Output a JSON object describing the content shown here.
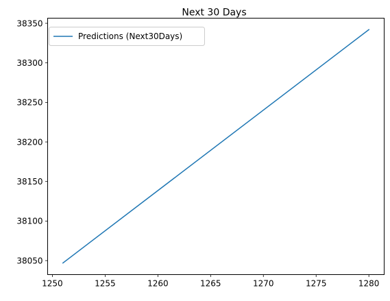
{
  "chart_data": {
    "type": "line",
    "title": "Next 30 Days",
    "xlabel": "",
    "ylabel": "",
    "xlim": [
      1249.55,
      1281.45
    ],
    "ylim": [
      38032.3,
      38356.5
    ],
    "xticks": [
      1250,
      1255,
      1260,
      1265,
      1270,
      1275,
      1280
    ],
    "yticks": [
      38050,
      38100,
      38150,
      38200,
      38250,
      38300,
      38350
    ],
    "grid": false,
    "legend": {
      "position": "top-left"
    },
    "series": [
      {
        "name": "Predictions (Next30Days)",
        "color": "#1f77b4",
        "x": [
          1251,
          1280
        ],
        "y": [
          38047,
          38342
        ]
      }
    ]
  }
}
